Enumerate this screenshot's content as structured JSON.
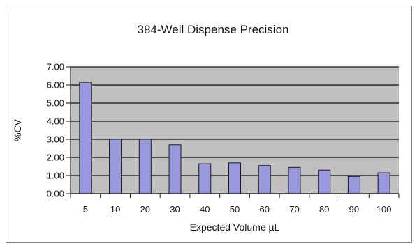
{
  "chart_data": {
    "type": "bar",
    "title": "384-Well Dispense Precision",
    "xlabel": "Expected Volume µL",
    "ylabel": "%CV",
    "categories": [
      "5",
      "10",
      "20",
      "30",
      "40",
      "50",
      "60",
      "70",
      "80",
      "90",
      "100"
    ],
    "values": [
      6.15,
      3.0,
      3.0,
      2.7,
      1.65,
      1.7,
      1.55,
      1.45,
      1.3,
      0.95,
      1.15
    ],
    "ylim": [
      0,
      7
    ],
    "yticks": [
      "0.00",
      "1.00",
      "2.00",
      "3.00",
      "4.00",
      "5.00",
      "6.00",
      "7.00"
    ],
    "grid": true,
    "legend": "none",
    "colors": {
      "plot_background": "#c0c0c0",
      "bar_fill": "#9999dd",
      "bar_stroke": "#1a1a1a",
      "gridline": "#111111",
      "border": "#7f7f7f"
    }
  }
}
